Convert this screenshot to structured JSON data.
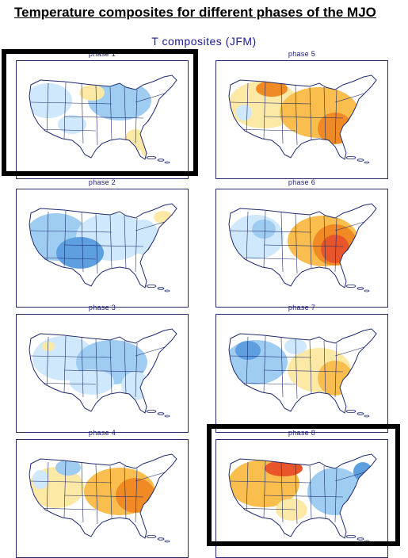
{
  "page": {
    "heading": "Temperature composites for different phases of the MJO",
    "subtitle": "T composites (JFM)"
  },
  "panels": [
    {
      "id": "p1",
      "label": "phase 1",
      "pattern": "cool-west-warm-south",
      "highlighted": true
    },
    {
      "id": "p2",
      "label": "phase 2",
      "pattern": "cool-all",
      "highlighted": false
    },
    {
      "id": "p3",
      "label": "phase 3",
      "pattern": "cool-mild",
      "highlighted": false
    },
    {
      "id": "p4",
      "label": "phase 4",
      "pattern": "warm-east",
      "highlighted": false
    },
    {
      "id": "p5",
      "label": "phase 5",
      "pattern": "warm-all",
      "highlighted": false
    },
    {
      "id": "p6",
      "label": "phase 6",
      "pattern": "hot-east",
      "highlighted": false
    },
    {
      "id": "p7",
      "label": "phase 7",
      "pattern": "cool-west-warm-east",
      "highlighted": false
    },
    {
      "id": "p8",
      "label": "phase 8",
      "pattern": "warm-north-cool-east",
      "highlighted": true
    }
  ],
  "colors": {
    "cool_light": "#cfe8fb",
    "cool_mid": "#9fcdf2",
    "cool_deep": "#5e9fe0",
    "neutral": "#ffffff",
    "warm_light": "#fde9a6",
    "warm_mid": "#f9be4d",
    "warm_deep": "#f08a24",
    "hot": "#e8552a",
    "state_lines": "#1f2a6e",
    "highlight_box": "#000000"
  }
}
